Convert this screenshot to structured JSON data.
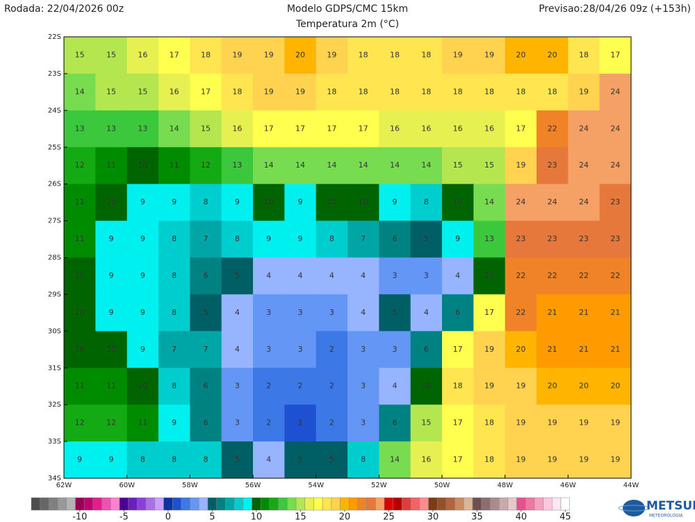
{
  "header": {
    "left": "Rodada: 22/04/2026 00z",
    "center": "Modelo GDPS/CMC 15km",
    "right": "Previsao:28/04/26 09z (+153h)",
    "subtitle": "Temperatura 2m (°C)"
  },
  "map": {
    "lon": [
      -62,
      -44
    ],
    "lat": [
      -22,
      -34
    ],
    "lat_ticks": [
      {
        "value": -22,
        "label": "22S"
      },
      {
        "value": -23,
        "label": "23S"
      },
      {
        "value": -24,
        "label": "24S"
      },
      {
        "value": -25,
        "label": "25S"
      },
      {
        "value": -26,
        "label": "26S"
      },
      {
        "value": -27,
        "label": "27S"
      },
      {
        "value": -28,
        "label": "28S"
      },
      {
        "value": -29,
        "label": "29S"
      },
      {
        "value": -30,
        "label": "30S"
      },
      {
        "value": -31,
        "label": "31S"
      },
      {
        "value": -32,
        "label": "32S"
      },
      {
        "value": -33,
        "label": "33S"
      },
      {
        "value": -34,
        "label": "34S"
      }
    ],
    "lon_ticks": [
      {
        "value": -62,
        "label": "62W"
      },
      {
        "value": -60,
        "label": "60W"
      },
      {
        "value": -58,
        "label": "58W"
      },
      {
        "value": -56,
        "label": "56W"
      },
      {
        "value": -54,
        "label": "54W"
      },
      {
        "value": -52,
        "label": "52W"
      },
      {
        "value": -50,
        "label": "50W"
      },
      {
        "value": -48,
        "label": "48W"
      },
      {
        "value": -46,
        "label": "46W"
      },
      {
        "value": -44,
        "label": "44W"
      }
    ],
    "grid": [
      [
        15,
        15,
        16,
        17,
        18,
        19,
        19,
        20,
        19,
        18,
        18,
        18,
        19,
        19,
        20,
        20,
        18,
        17
      ],
      [
        14,
        15,
        15,
        16,
        17,
        18,
        19,
        19,
        18,
        18,
        18,
        18,
        18,
        18,
        18,
        18,
        19,
        24
      ],
      [
        13,
        13,
        13,
        14,
        15,
        16,
        17,
        17,
        17,
        17,
        16,
        16,
        16,
        16,
        17,
        22,
        24,
        24
      ],
      [
        12,
        11,
        10,
        11,
        12,
        13,
        14,
        14,
        14,
        14,
        14,
        14,
        15,
        15,
        19,
        23,
        24,
        24
      ],
      [
        11,
        10,
        9,
        9,
        8,
        9,
        10,
        9,
        10,
        10,
        9,
        8,
        10,
        14,
        24,
        24,
        24,
        23
      ],
      [
        11,
        9,
        9,
        8,
        7,
        8,
        9,
        9,
        8,
        7,
        6,
        5,
        9,
        13,
        23,
        23,
        23,
        23
      ],
      [
        10,
        9,
        9,
        8,
        6,
        5,
        4,
        4,
        4,
        4,
        3,
        3,
        4,
        10,
        22,
        22,
        22,
        22
      ],
      [
        10,
        9,
        9,
        8,
        5,
        4,
        3,
        3,
        3,
        4,
        5,
        4,
        6,
        17,
        22,
        21,
        21,
        21
      ],
      [
        10,
        10,
        9,
        7,
        7,
        4,
        3,
        3,
        2,
        3,
        3,
        6,
        17,
        19,
        20,
        21,
        21,
        21
      ],
      [
        11,
        11,
        10,
        8,
        6,
        3,
        2,
        2,
        2,
        3,
        4,
        10,
        18,
        19,
        19,
        20,
        20,
        20
      ],
      [
        12,
        12,
        11,
        9,
        6,
        3,
        2,
        1,
        2,
        3,
        6,
        15,
        17,
        18,
        19,
        19,
        19,
        19
      ],
      [
        9,
        9,
        8,
        8,
        8,
        5,
        4,
        5,
        5,
        8,
        14,
        16,
        17,
        18,
        19,
        19,
        19,
        19
      ]
    ]
  },
  "colorbar": {
    "min": -15,
    "ticks": [
      -10,
      -5,
      0,
      5,
      10,
      15,
      20,
      25,
      30,
      35,
      40,
      45
    ],
    "palette": [
      "#4d4d4d",
      "#666666",
      "#808080",
      "#999999",
      "#b3b3b3",
      "#990055",
      "#c0006e",
      "#e0208a",
      "#f050b0",
      "#ff80d0",
      "#4b0096",
      "#6a1fbf",
      "#8a40d8",
      "#a870ea",
      "#c8a0f8",
      "#0a32a0",
      "#1e50d2",
      "#3c78e6",
      "#6496f5",
      "#96b4ff",
      "#005f64",
      "#008282",
      "#00a5a5",
      "#00cdcd",
      "#00f0f0",
      "#006400",
      "#008c00",
      "#14aa14",
      "#3cc83c",
      "#78dc50",
      "#b4e650",
      "#e6f050",
      "#ffff50",
      "#ffe650",
      "#ffd250",
      "#ffb400",
      "#ff9b00",
      "#f08228",
      "#e6783c",
      "#f5a064",
      "#dc0000",
      "#b40000",
      "#e03c3c",
      "#f06464",
      "#ff8c8c",
      "#7a3c14",
      "#965028",
      "#b4643c",
      "#c88c64",
      "#dcb496",
      "#6e5050",
      "#8c6e6e",
      "#aa8c8c",
      "#c8aaaa",
      "#e6c8c8",
      "#e6508c",
      "#f078a0",
      "#f5a0be",
      "#fac8dc",
      "#ffe6f0",
      "#ffffff"
    ]
  },
  "logo": {
    "name": "METSUL",
    "tagline": "METEOROLOGIA"
  }
}
